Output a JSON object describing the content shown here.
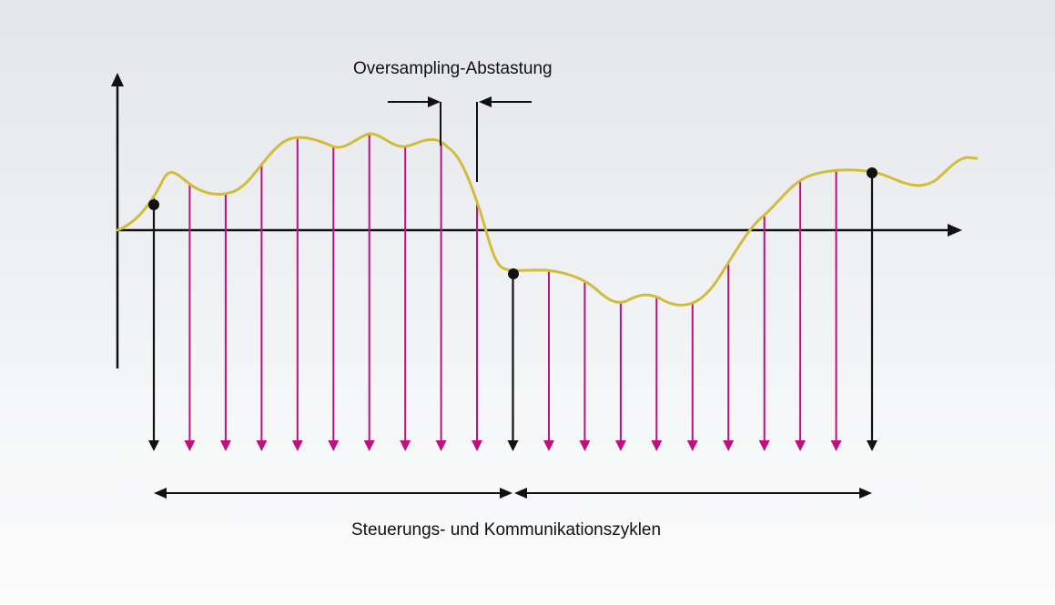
{
  "labels": {
    "oversampling": "Oversampling-Abstastung",
    "cycles": "Steuerungs- und Kommunikationszyklen"
  },
  "colors": {
    "signal_curve": "#d1bd3c",
    "oversample_arrow": "#c0107d",
    "cycle_arrow": "#111111",
    "axis": "#111111"
  },
  "diagram": {
    "cycles_shown": 2,
    "oversamples_per_cycle": 10
  }
}
